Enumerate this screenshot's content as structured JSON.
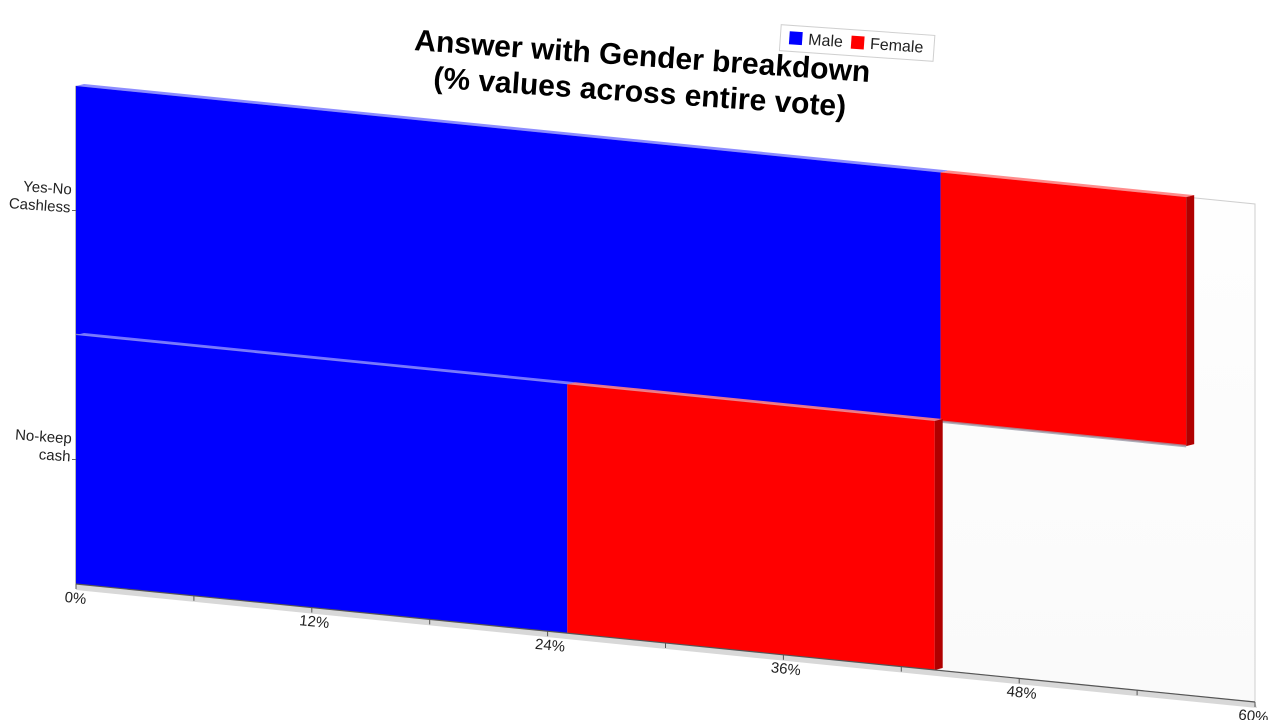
{
  "chart_data": {
    "type": "bar",
    "orientation": "horizontal",
    "stacked": true,
    "title": "Answer with Gender breakdown",
    "subtitle": "(% values across entire vote)",
    "categories": [
      "Yes-No Cashless",
      "No-keep cash"
    ],
    "category_lines": [
      [
        "Yes-No",
        "Cashless"
      ],
      [
        "No-keep",
        "cash"
      ]
    ],
    "series": [
      {
        "name": "Male",
        "color": "#0000ff",
        "values": [
          44,
          25
        ]
      },
      {
        "name": "Female",
        "color": "#ff0000",
        "values": [
          12.5,
          18.7
        ]
      }
    ],
    "x_ticks": [
      "0%",
      "12%",
      "24%",
      "36%",
      "48%",
      "60%"
    ],
    "xlim": [
      0,
      60
    ],
    "legend_position": "top-right",
    "grid": false
  }
}
